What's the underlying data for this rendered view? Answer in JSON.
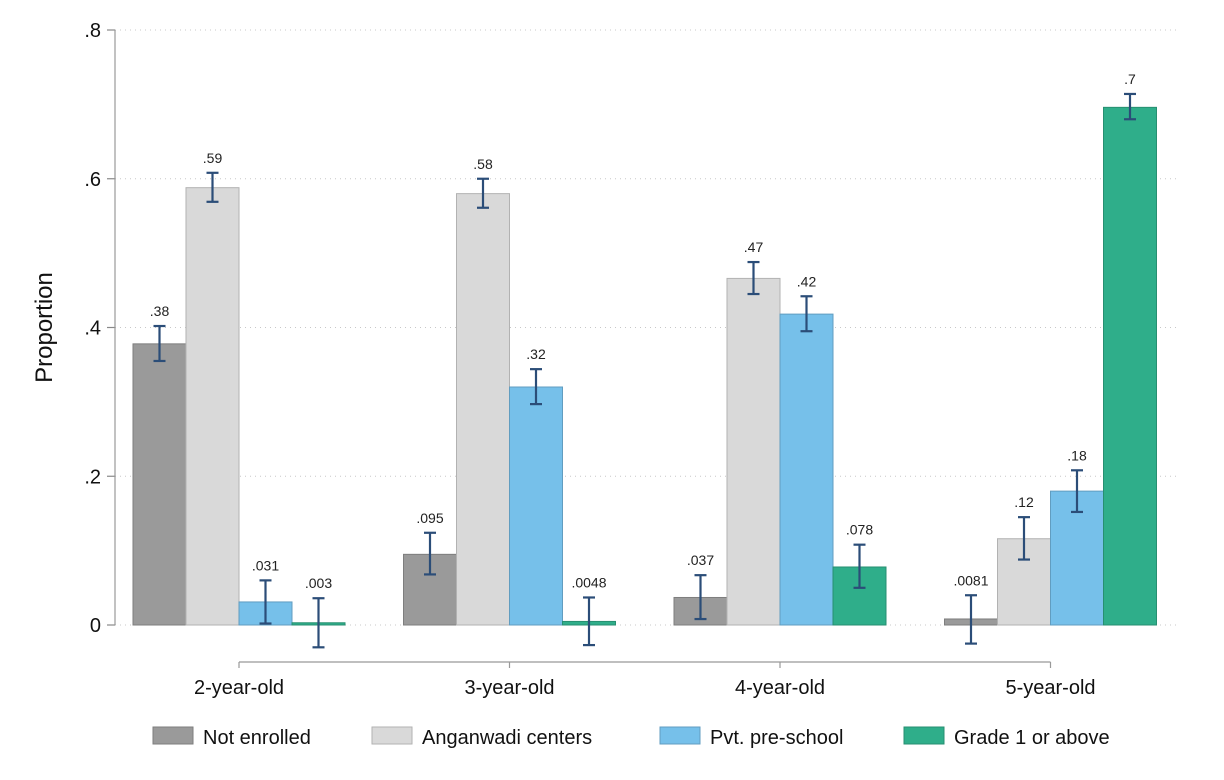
{
  "chart_data": {
    "type": "bar",
    "title": "",
    "xlabel": "",
    "ylabel": "Proportion",
    "ylim": [
      0,
      0.8
    ],
    "yticks": [
      0,
      0.2,
      0.4,
      0.6,
      0.8
    ],
    "ytick_labels": [
      "0",
      ".2",
      ".4",
      ".6",
      ".8"
    ],
    "grid": true,
    "legend_position": "bottom",
    "categories": [
      "2-year-old",
      "3-year-old",
      "4-year-old",
      "5-year-old"
    ],
    "series": [
      {
        "name": "Not enrolled",
        "color": "#9a9a9a",
        "values": [
          0.378,
          0.095,
          0.037,
          0.0081
        ],
        "labels": [
          ".38",
          ".095",
          ".037",
          ".0081"
        ],
        "ci_low": [
          0.355,
          0.068,
          0.008,
          -0.025
        ],
        "ci_high": [
          0.402,
          0.124,
          0.067,
          0.04
        ]
      },
      {
        "name": "Anganwadi centers",
        "color": "#d9d9d9",
        "values": [
          0.588,
          0.58,
          0.466,
          0.116
        ],
        "labels": [
          ".59",
          ".58",
          ".47",
          ".12"
        ],
        "ci_low": [
          0.569,
          0.561,
          0.445,
          0.088
        ],
        "ci_high": [
          0.608,
          0.6,
          0.488,
          0.145
        ]
      },
      {
        "name": "Pvt. pre-school",
        "color": "#76c0ea",
        "values": [
          0.031,
          0.32,
          0.418,
          0.18
        ],
        "labels": [
          ".031",
          ".32",
          ".42",
          ".18"
        ],
        "ci_low": [
          0.002,
          0.297,
          0.395,
          0.152
        ],
        "ci_high": [
          0.06,
          0.344,
          0.442,
          0.208
        ]
      },
      {
        "name": "Grade 1 or above",
        "color": "#2fae8a",
        "values": [
          0.003,
          0.0048,
          0.078,
          0.696
        ],
        "labels": [
          ".003",
          ".0048",
          ".078",
          ".7"
        ],
        "ci_low": [
          -0.03,
          -0.027,
          0.05,
          0.68
        ],
        "ci_high": [
          0.036,
          0.037,
          0.108,
          0.714
        ]
      }
    ]
  }
}
